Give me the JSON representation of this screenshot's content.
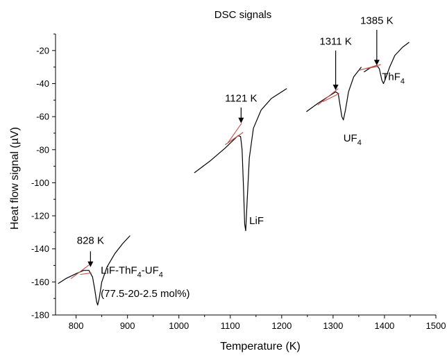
{
  "chart_data": {
    "type": "line",
    "title": "DSC signals",
    "xlabel": "Temperature (K)",
    "ylabel": "Heat flow signal (µV)",
    "xlim": [
      760,
      1500
    ],
    "ylim": [
      -180,
      -10
    ],
    "xticks": [
      800,
      900,
      1000,
      1100,
      1200,
      1300,
      1400,
      1500
    ],
    "yticks": [
      -180,
      -160,
      -140,
      -120,
      -100,
      -80,
      -60,
      -40,
      -20
    ],
    "grid": false,
    "legend": "none",
    "colors": {
      "signal": "#000000",
      "tangent": "#c0504d"
    },
    "series": [
      {
        "points": [
          [
            765,
            -161
          ],
          [
            780,
            -158
          ],
          [
            800,
            -155
          ],
          [
            815,
            -153
          ],
          [
            825,
            -153
          ],
          [
            832,
            -157
          ],
          [
            836,
            -164
          ],
          [
            840,
            -172
          ],
          [
            842,
            -174
          ],
          [
            845,
            -170
          ],
          [
            850,
            -160
          ],
          [
            860,
            -151
          ],
          [
            875,
            -143
          ],
          [
            890,
            -137
          ],
          [
            905,
            -132
          ]
        ]
      },
      {
        "points": [
          [
            1030,
            -94
          ],
          [
            1060,
            -87
          ],
          [
            1090,
            -79
          ],
          [
            1110,
            -73
          ],
          [
            1115,
            -71.5
          ],
          [
            1120,
            -72
          ],
          [
            1123,
            -80
          ],
          [
            1126,
            -105
          ],
          [
            1128,
            -125
          ],
          [
            1130,
            -129
          ],
          [
            1133,
            -110
          ],
          [
            1137,
            -85
          ],
          [
            1145,
            -67
          ],
          [
            1160,
            -56
          ],
          [
            1180,
            -49
          ],
          [
            1210,
            -43
          ]
        ]
      },
      {
        "points": [
          [
            1248,
            -57
          ],
          [
            1270,
            -52
          ],
          [
            1290,
            -48
          ],
          [
            1305,
            -45
          ],
          [
            1310,
            -46
          ],
          [
            1313,
            -52
          ],
          [
            1317,
            -60
          ],
          [
            1320,
            -62
          ],
          [
            1324,
            -56
          ],
          [
            1330,
            -45
          ],
          [
            1340,
            -36
          ],
          [
            1355,
            -30
          ]
        ]
      },
      {
        "points": [
          [
            1360,
            -33
          ],
          [
            1375,
            -30
          ],
          [
            1385,
            -29
          ],
          [
            1390,
            -31
          ],
          [
            1395,
            -38
          ],
          [
            1398,
            -40
          ],
          [
            1402,
            -37
          ],
          [
            1410,
            -30
          ],
          [
            1420,
            -23
          ],
          [
            1435,
            -18
          ],
          [
            1448,
            -15
          ]
        ]
      }
    ],
    "tangents": [
      [
        [
          790,
          -158
        ],
        [
          826,
          -149.5
        ]
      ],
      [
        [
          808,
          -155.5
        ],
        [
          830,
          -154.5
        ]
      ],
      [
        [
          1095,
          -76
        ],
        [
          1122,
          -64
        ]
      ],
      [
        [
          1090,
          -77
        ],
        [
          1125,
          -69.5
        ]
      ],
      [
        [
          1270,
          -53
        ],
        [
          1310,
          -43
        ]
      ],
      [
        [
          1280,
          -51
        ],
        [
          1312,
          -46
        ]
      ],
      [
        [
          1350,
          -32
        ],
        [
          1393,
          -28.5
        ]
      ],
      [
        [
          1365,
          -31
        ],
        [
          1388,
          -29.5
        ]
      ]
    ],
    "annotations": [
      {
        "label": "828 K",
        "x": 828,
        "y_text": -137,
        "y_arrow_start": -141.5,
        "y_arrow_end": -151
      },
      {
        "label": "1121 K",
        "x": 1121,
        "y_text": -51,
        "y_arrow_start": -54.5,
        "y_arrow_end": -64
      },
      {
        "label": "1311 K",
        "x": 1305,
        "y_text": -16.5,
        "y_arrow_start": -20,
        "y_arrow_end": -44
      },
      {
        "label": "1385 K",
        "x": 1385,
        "y_text": -4,
        "y_arrow_start": -7.5,
        "y_arrow_end": -29
      }
    ],
    "peak_labels": [
      {
        "base": "LiF",
        "x": 1137,
        "y": -125
      },
      {
        "base": "UF",
        "sub": "4",
        "x": 1320,
        "y": -75
      },
      {
        "base": "ThF",
        "sub": "4",
        "x": 1395,
        "y": -38
      },
      {
        "base": "LiF-ThF",
        "sub": "4",
        "after": "-UF",
        "sub2": "4",
        "x": 848,
        "y": -155
      },
      {
        "base": "(77.5-20-2.5 mol%)",
        "x": 848,
        "y": -169
      }
    ]
  }
}
